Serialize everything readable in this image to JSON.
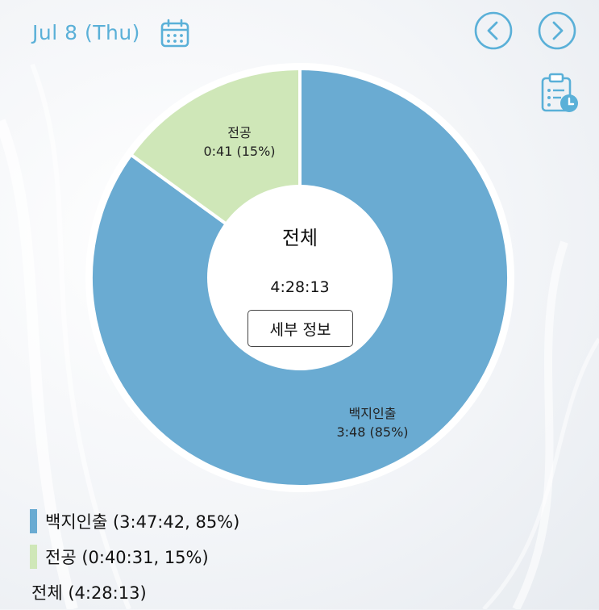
{
  "header": {
    "date": "Jul 8 (Thu)",
    "calendar_icon": "calendar-icon",
    "prev_icon": "chevron-left-circle-icon",
    "next_icon": "chevron-right-circle-icon",
    "clipboard_icon": "clipboard-clock-icon"
  },
  "colors": {
    "accent": "#5ab0d8",
    "slice_main": "#6aabd2",
    "slice_minor": "#cfe7b8"
  },
  "chart_data": {
    "type": "pie",
    "donut": true,
    "slices": [
      {
        "name": "백지인출",
        "time": "3:48",
        "percent": 85,
        "label_pct": "3:48 (85%)",
        "color": "#6aabd2"
      },
      {
        "name": "전공",
        "time": "0:41",
        "percent": 15,
        "label_pct": "0:41 (15%)",
        "color": "#cfe7b8"
      }
    ],
    "center_title": "전체",
    "center_value": "4:28:13"
  },
  "detail_button_label": "세부 정보",
  "legend": {
    "items": [
      {
        "text": "백지인출 (3:47:42, 85%)",
        "color": "#6aabd2"
      },
      {
        "text": "전공 (0:40:31, 15%)",
        "color": "#cfe7b8"
      }
    ],
    "total": "전체 (4:28:13)"
  }
}
